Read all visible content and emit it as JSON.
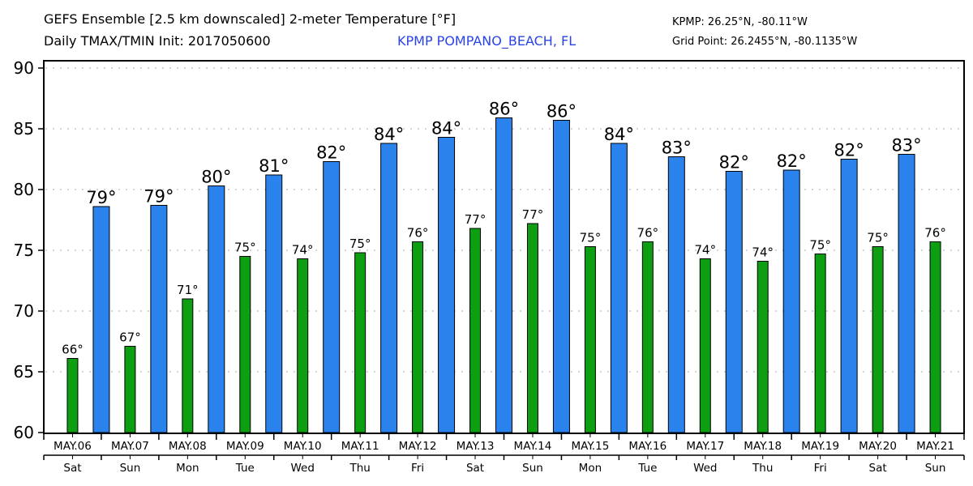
{
  "header": {
    "title_line1": "GEFS Ensemble [2.5 km downscaled] 2-meter Temperature [°F]",
    "title_line2": "Daily TMAX/TMIN Init: 2017050600",
    "station_name": "KPMP POMPANO_BEACH, FL",
    "station_coords": "KPMP: 26.25°N, -80.11°W",
    "grid_point": "Grid Point: 26.2455°N, -80.1135°W"
  },
  "colors": {
    "tmax": "#2a82ec",
    "tmin": "#0e9e12",
    "station_text": "#2a44e8",
    "grid": "#aaaaaa"
  },
  "chart_data": {
    "type": "bar",
    "title": "GEFS Ensemble [2.5 km downscaled] 2-meter Temperature [°F]",
    "subtitle": "Daily TMAX/TMIN Init: 2017050600",
    "xlabel": "",
    "ylabel": "",
    "ylim": [
      60,
      90
    ],
    "yticks": [
      60,
      65,
      70,
      75,
      80,
      85,
      90
    ],
    "grid": true,
    "legend": "none",
    "categories": [
      "MAY.06",
      "MAY.07",
      "MAY.08",
      "MAY.09",
      "MAY.10",
      "MAY.11",
      "MAY.12",
      "MAY.13",
      "MAY.14",
      "MAY.15",
      "MAY.16",
      "MAY.17",
      "MAY.18",
      "MAY.19",
      "MAY.20",
      "MAY.21"
    ],
    "weekdays": [
      "Sat",
      "Sun",
      "Mon",
      "Tue",
      "Wed",
      "Thu",
      "Fri",
      "Sat",
      "Sun",
      "Mon",
      "Tue",
      "Wed",
      "Thu",
      "Fri",
      "Sat",
      "Sun"
    ],
    "series": [
      {
        "name": "TMIN",
        "position": "day-center",
        "values": [
          66.1,
          67.1,
          71.0,
          74.5,
          74.3,
          74.8,
          75.7,
          76.8,
          77.2,
          75.3,
          75.7,
          74.3,
          74.1,
          74.7,
          75.3,
          75.7
        ],
        "labels": [
          "66°",
          "67°",
          "71°",
          "75°",
          "74°",
          "75°",
          "76°",
          "77°",
          "77°",
          "75°",
          "76°",
          "74°",
          "74°",
          "75°",
          "75°",
          "76°"
        ]
      },
      {
        "name": "TMAX",
        "position": "day-boundary",
        "values": [
          78.6,
          78.7,
          80.3,
          81.2,
          82.3,
          83.8,
          84.3,
          85.9,
          85.7,
          83.8,
          82.7,
          81.5,
          81.6,
          82.5,
          82.9
        ],
        "labels": [
          "79°",
          "79°",
          "80°",
          "81°",
          "82°",
          "84°",
          "84°",
          "86°",
          "86°",
          "84°",
          "83°",
          "82°",
          "82°",
          "82°",
          "83°"
        ]
      }
    ]
  }
}
